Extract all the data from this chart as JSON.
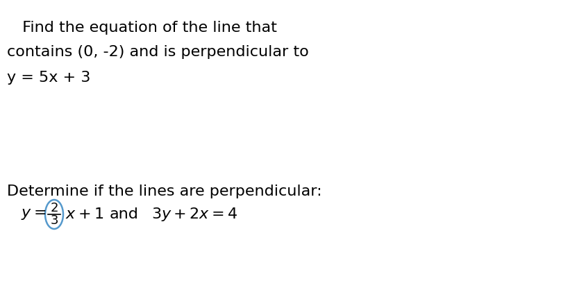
{
  "background_color": "#ffffff",
  "text_color": "#000000",
  "line1_text": "  Find the equation of the line that",
  "line2_text": "contains (0, -2) and is perpendicular to",
  "line3_text": "y = 5x + 3",
  "line4_text": "Determine if the lines are perpendicular:",
  "fontsize": 16,
  "ellipse_color": "#5599cc"
}
